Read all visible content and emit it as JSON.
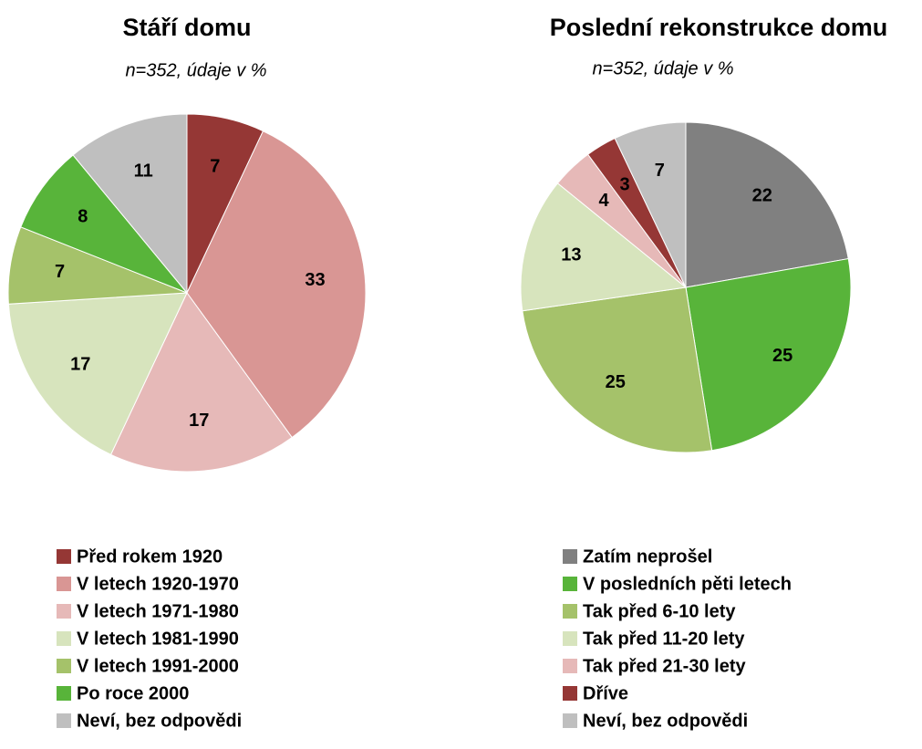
{
  "chart_data": [
    {
      "type": "pie",
      "title": "Stáří domu",
      "subtitle": "n=352, údaje v %",
      "categories": [
        "Před rokem 1920",
        "V letech 1920-1970",
        "V letech 1971-1980",
        "V letech 1981-1990",
        "V letech 1991-2000",
        "Po roce 2000",
        "Neví, bez odpovědi"
      ],
      "values": [
        7,
        33,
        17,
        17,
        7,
        8,
        11
      ],
      "colors": [
        "#953735",
        "#d99694",
        "#e6b9b8",
        "#d7e4bd",
        "#a5c26a",
        "#58b43a",
        "#bfbfbf"
      ]
    },
    {
      "type": "pie",
      "title": "Poslední rekonstrukce domu",
      "subtitle": "n=352, údaje v %",
      "categories": [
        "Zatím neprošel",
        "V posledních pěti letech",
        "Tak před 6-10 lety",
        "Tak před 11-20 lety",
        "Tak před 21-30 lety",
        "Dříve",
        "Neví, bez odpovědi"
      ],
      "values": [
        22,
        25,
        25,
        13,
        4,
        3,
        7
      ],
      "colors": [
        "#808080",
        "#58b43a",
        "#a5c26a",
        "#d7e4bd",
        "#e6b9b8",
        "#953735",
        "#bfbfbf"
      ]
    }
  ]
}
